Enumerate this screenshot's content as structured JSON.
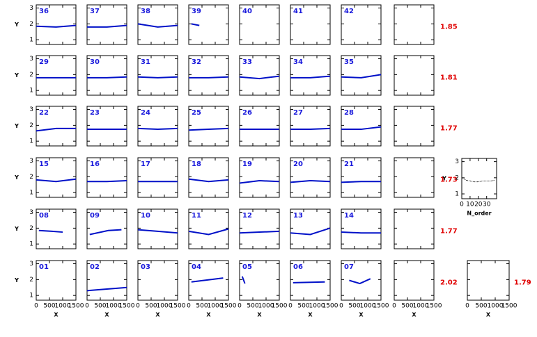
{
  "xlim": [
    0,
    1500
  ],
  "ylim": [
    0.7,
    3.2
  ],
  "xticks": [
    0,
    500,
    1000,
    1500
  ],
  "yticks": [
    1,
    2,
    3
  ],
  "xlabel": "X",
  "ylabel": "Y",
  "rows": [
    {
      "summary": "1.85",
      "panels": [
        {
          "label": "36",
          "fit": {
            "x": [
              0,
              750,
              1500
            ],
            "y": [
              1.85,
              1.8,
              1.9
            ]
          }
        },
        {
          "label": "37",
          "fit": {
            "x": [
              0,
              750,
              1500
            ],
            "y": [
              1.8,
              1.8,
              1.9
            ]
          }
        },
        {
          "label": "38",
          "fit": {
            "x": [
              0,
              750,
              1500
            ],
            "y": [
              2.0,
              1.8,
              1.9
            ]
          }
        },
        {
          "label": "39",
          "fit": {
            "x": [
              100,
              400
            ],
            "y": [
              2.0,
              1.9
            ]
          }
        },
        {
          "label": "40"
        },
        {
          "label": "41"
        },
        {
          "label": "42"
        }
      ]
    },
    {
      "summary": "1.81",
      "panels": [
        {
          "label": "29",
          "fit": {
            "x": [
              0,
              750,
              1500
            ],
            "y": [
              1.8,
              1.8,
              1.8
            ]
          }
        },
        {
          "label": "30",
          "fit": {
            "x": [
              0,
              750,
              1500
            ],
            "y": [
              1.8,
              1.8,
              1.85
            ]
          }
        },
        {
          "label": "31",
          "fit": {
            "x": [
              0,
              750,
              1500
            ],
            "y": [
              1.85,
              1.8,
              1.85
            ]
          }
        },
        {
          "label": "32",
          "fit": {
            "x": [
              0,
              750,
              1500
            ],
            "y": [
              1.8,
              1.8,
              1.85
            ]
          }
        },
        {
          "label": "33",
          "fit": {
            "x": [
              0,
              750,
              1500
            ],
            "y": [
              1.85,
              1.75,
              1.9
            ]
          }
        },
        {
          "label": "34",
          "fit": {
            "x": [
              0,
              750,
              1500
            ],
            "y": [
              1.8,
              1.8,
              1.9
            ]
          }
        },
        {
          "label": "35",
          "fit": {
            "x": [
              0,
              750,
              1500
            ],
            "y": [
              1.85,
              1.8,
              2.0
            ]
          }
        }
      ]
    },
    {
      "summary": "1.77",
      "panels": [
        {
          "label": "22",
          "fit": {
            "x": [
              0,
              750,
              1500
            ],
            "y": [
              1.65,
              1.8,
              1.8
            ]
          }
        },
        {
          "label": "23",
          "fit": {
            "x": [
              0,
              750,
              1500
            ],
            "y": [
              1.75,
              1.75,
              1.75
            ]
          }
        },
        {
          "label": "24",
          "fit": {
            "x": [
              0,
              750,
              1500
            ],
            "y": [
              1.8,
              1.75,
              1.8
            ]
          }
        },
        {
          "label": "25",
          "fit": {
            "x": [
              0,
              750,
              1500
            ],
            "y": [
              1.7,
              1.75,
              1.8
            ]
          }
        },
        {
          "label": "26",
          "fit": {
            "x": [
              0,
              750,
              1500
            ],
            "y": [
              1.75,
              1.75,
              1.75
            ]
          }
        },
        {
          "label": "27",
          "fit": {
            "x": [
              0,
              750,
              1500
            ],
            "y": [
              1.75,
              1.75,
              1.8
            ]
          }
        },
        {
          "label": "28",
          "fit": {
            "x": [
              0,
              750,
              1500
            ],
            "y": [
              1.75,
              1.75,
              1.9
            ]
          }
        }
      ]
    },
    {
      "summary": "1.73",
      "panels": [
        {
          "label": "15",
          "fit": {
            "x": [
              0,
              750,
              1500
            ],
            "y": [
              1.8,
              1.7,
              1.85
            ]
          }
        },
        {
          "label": "16",
          "fit": {
            "x": [
              0,
              750,
              1500
            ],
            "y": [
              1.7,
              1.7,
              1.75
            ]
          }
        },
        {
          "label": "17",
          "fit": {
            "x": [
              0,
              750,
              1500
            ],
            "y": [
              1.7,
              1.7,
              1.7
            ]
          }
        },
        {
          "label": "18",
          "fit": {
            "x": [
              0,
              750,
              1500
            ],
            "y": [
              1.85,
              1.7,
              1.8
            ]
          }
        },
        {
          "label": "19",
          "fit": {
            "x": [
              0,
              750,
              1500
            ],
            "y": [
              1.6,
              1.75,
              1.7
            ]
          }
        },
        {
          "label": "20",
          "fit": {
            "x": [
              0,
              750,
              1500
            ],
            "y": [
              1.65,
              1.75,
              1.7
            ]
          }
        },
        {
          "label": "21",
          "fit": {
            "x": [
              0,
              750,
              1500
            ],
            "y": [
              1.65,
              1.7,
              1.7
            ]
          }
        }
      ]
    },
    {
      "summary": "1.77",
      "panels": [
        {
          "label": "08",
          "fit": {
            "x": [
              100,
              600,
              1000
            ],
            "y": [
              1.85,
              1.8,
              1.75
            ]
          }
        },
        {
          "label": "09",
          "fit": {
            "x": [
              100,
              800,
              1300
            ],
            "y": [
              1.6,
              1.85,
              1.9
            ]
          }
        },
        {
          "label": "10",
          "fit": {
            "x": [
              0,
              750,
              1500
            ],
            "y": [
              1.9,
              1.8,
              1.7
            ]
          }
        },
        {
          "label": "11",
          "fit": {
            "x": [
              0,
              750,
              1500
            ],
            "y": [
              1.8,
              1.6,
              1.95
            ]
          }
        },
        {
          "label": "12",
          "fit": {
            "x": [
              0,
              750,
              1500
            ],
            "y": [
              1.7,
              1.75,
              1.8
            ]
          }
        },
        {
          "label": "13",
          "fit": {
            "x": [
              0,
              750,
              1500
            ],
            "y": [
              1.7,
              1.6,
              2.0
            ]
          }
        },
        {
          "label": "14",
          "fit": {
            "x": [
              0,
              750,
              1500
            ],
            "y": [
              1.75,
              1.7,
              1.7
            ]
          }
        }
      ]
    },
    {
      "summary": "2.02",
      "panels": [
        {
          "label": "01"
        },
        {
          "label": "02",
          "fit": {
            "x": [
              0,
              750,
              1500
            ],
            "y": [
              1.3,
              1.4,
              1.5
            ]
          }
        },
        {
          "label": "03"
        },
        {
          "label": "04",
          "fit": {
            "x": [
              100,
              1300
            ],
            "y": [
              1.85,
              2.1
            ]
          }
        },
        {
          "label": "05",
          "fit": {
            "x": [
              100,
              200
            ],
            "y": [
              2.2,
              1.75
            ]
          }
        },
        {
          "label": "06",
          "fit": {
            "x": [
              100,
              1300
            ],
            "y": [
              1.8,
              1.85
            ]
          }
        },
        {
          "label": "07",
          "fit": {
            "x": [
              300,
              700,
              1100
            ],
            "y": [
              1.95,
              1.75,
              2.05
            ]
          }
        }
      ]
    }
  ],
  "order_plot": {
    "xlabel": "N_order",
    "xlim": [
      0,
      42
    ],
    "xticks": [
      0,
      10,
      20,
      30
    ],
    "x": [
      1,
      5,
      10,
      15,
      20,
      25,
      30,
      35,
      40
    ],
    "values": [
      2.0,
      1.85,
      1.8,
      1.75,
      1.75,
      1.8,
      1.8,
      1.8,
      1.85
    ]
  },
  "total": "1.79"
}
